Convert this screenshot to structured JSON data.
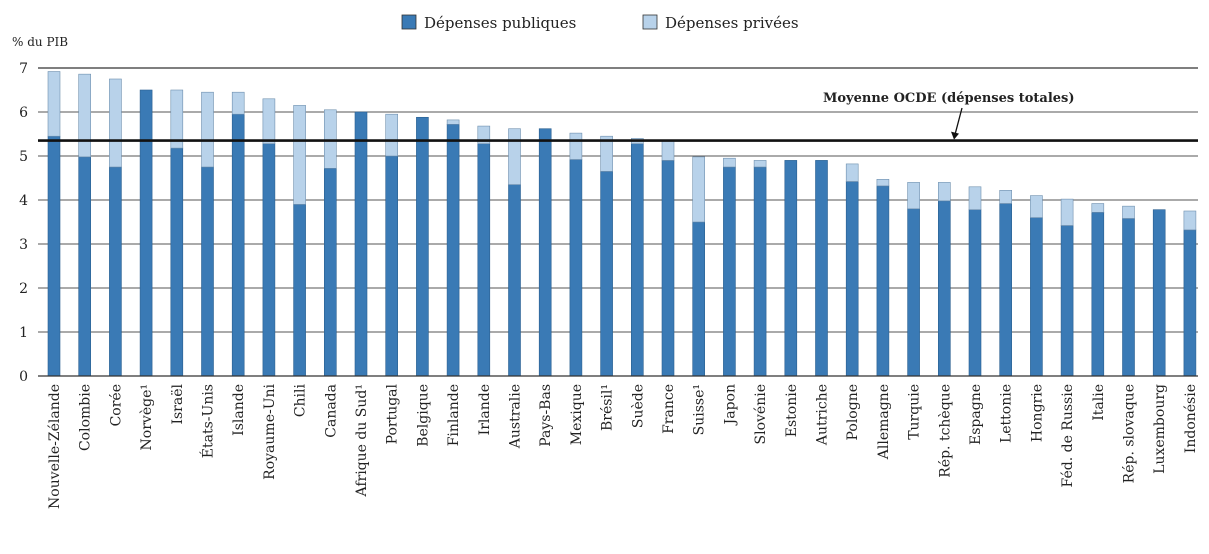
{
  "chart_data": {
    "type": "bar",
    "stacked": true,
    "ylabel": "% du PIB",
    "ylim": [
      0,
      7
    ],
    "yticks": [
      0,
      1,
      2,
      3,
      4,
      5,
      6,
      7
    ],
    "grid": true,
    "legend_position": "top-center",
    "categories": [
      "Nouvelle-Zélande",
      "Colombie",
      "Corée",
      "Norvège¹",
      "Israël",
      "États-Unis",
      "Islande",
      "Royaume-Uni",
      "Chili",
      "Canada",
      "Afrique du Sud¹",
      "Portugal",
      "Belgique",
      "Finlande",
      "Irlande",
      "Australie",
      "Pays-Bas",
      "Mexique",
      "Brésil¹",
      "Suède",
      "France",
      "Suisse¹",
      "Japon",
      "Slovénie",
      "Estonie",
      "Autriche",
      "Pologne",
      "Allemagne",
      "Turquie",
      "Rép. tchèque",
      "Espagne",
      "Lettonie",
      "Hongrie",
      "Féd. de Russie",
      "Italie",
      "Rép. slovaque",
      "Luxembourg",
      "Indonésie"
    ],
    "series": [
      {
        "name": "Dépenses publiques",
        "color": "#3a7ab5",
        "values": [
          5.45,
          4.98,
          4.75,
          6.5,
          5.18,
          4.75,
          5.95,
          5.28,
          3.9,
          4.72,
          6.0,
          5.0,
          5.88,
          5.72,
          5.28,
          4.35,
          5.62,
          4.92,
          4.65,
          5.28,
          4.9,
          3.5,
          4.75,
          4.75,
          4.9,
          4.9,
          4.42,
          4.32,
          3.8,
          3.98,
          3.78,
          3.92,
          3.6,
          3.42,
          3.72,
          3.58,
          3.78,
          3.32
        ]
      },
      {
        "name": "Dépenses privées",
        "color": "#b8d2ea",
        "values": [
          1.47,
          1.88,
          2.0,
          0.0,
          1.32,
          1.7,
          0.5,
          1.02,
          2.25,
          1.33,
          0.0,
          0.95,
          0.0,
          0.1,
          0.4,
          1.27,
          0.0,
          0.6,
          0.8,
          0.12,
          0.45,
          1.48,
          0.2,
          0.15,
          0.0,
          0.0,
          0.4,
          0.15,
          0.6,
          0.42,
          0.52,
          0.3,
          0.5,
          0.6,
          0.2,
          0.28,
          0.0,
          0.43
        ]
      }
    ],
    "reference_line": {
      "label": "Moyenne OCDE (dépenses totales)",
      "value": 5.35
    }
  }
}
